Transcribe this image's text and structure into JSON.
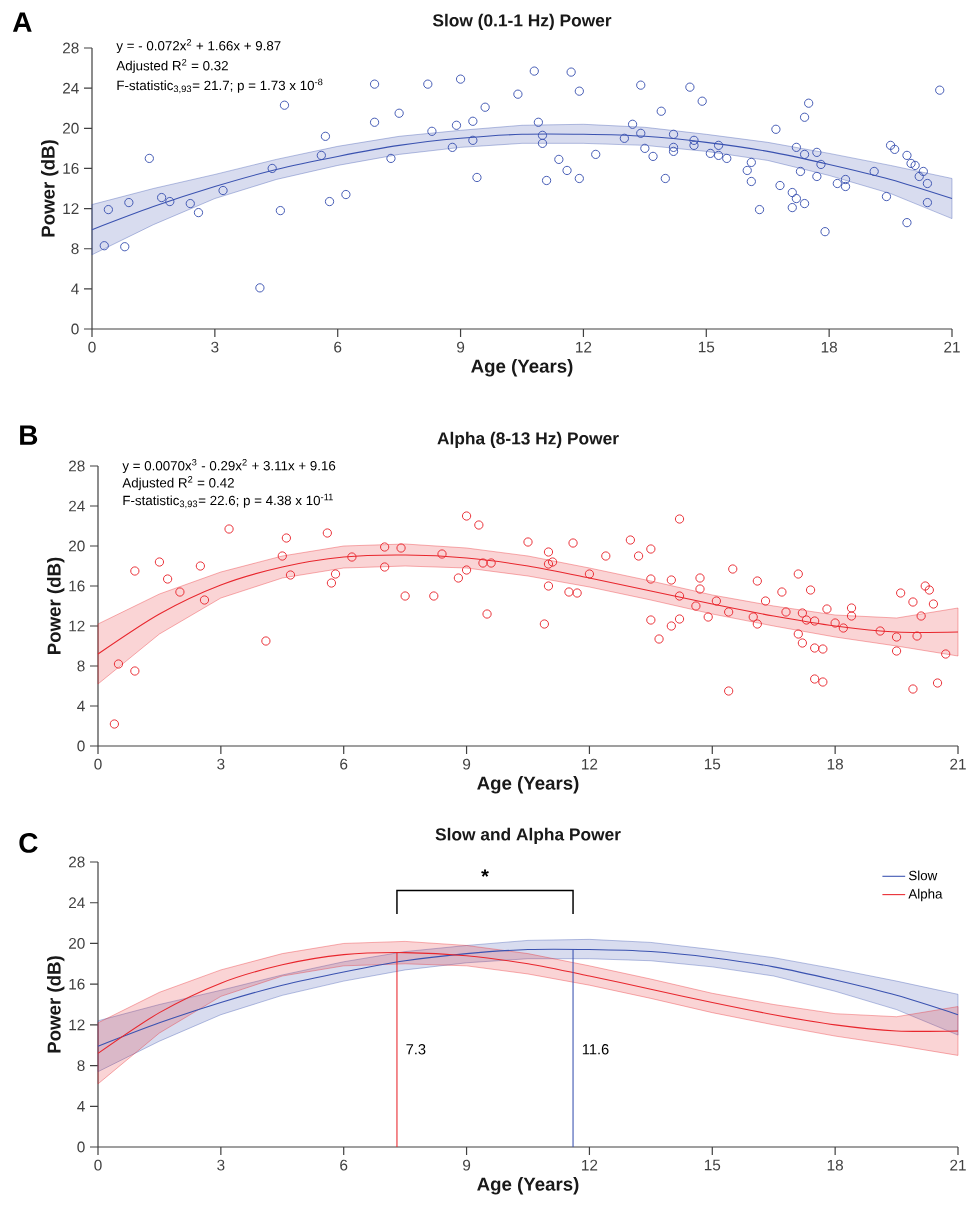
{
  "chart_data": [
    {
      "type": "scatter",
      "title": "Slow (0.1-1 Hz) Power",
      "xlabel": "Age (Years)",
      "ylabel": "Power (dB)",
      "xlim": [
        0,
        21
      ],
      "ylim": [
        0,
        28
      ],
      "xticks": [
        0,
        3,
        6,
        9,
        12,
        15,
        18,
        21
      ],
      "yticks": [
        0,
        4,
        8,
        12,
        16,
        20,
        24,
        28
      ],
      "marker": "circle",
      "annotations": [
        "A",
        "y = - 0.072x$^{2}$ + 1.66x + 9.87",
        "Adjusted R$^{2}$ = 0.32",
        "F-statistic$_{3,93}$= 21.7; p = 1.73 x 10$^{-8}$"
      ],
      "series": [
        {
          "color": "#3a52b0",
          "x": [
            0.3,
            0.4,
            0.8,
            0.9,
            1.4,
            1.7,
            1.9,
            2.4,
            2.6,
            3.2,
            4.1,
            4.4,
            4.6,
            4.7,
            5.6,
            5.7,
            5.8,
            6.2,
            6.9,
            6.9,
            7.3,
            7.5,
            8.2,
            8.3,
            8.8,
            8.9,
            9.0,
            9.3,
            9.3,
            9.4,
            9.6,
            10.4,
            10.8,
            10.9,
            11.0,
            11.0,
            11.1,
            11.4,
            11.6,
            11.7,
            11.9,
            11.9,
            12.3,
            13.0,
            13.2,
            13.4,
            13.4,
            13.5,
            13.7,
            13.9,
            14.0,
            14.2,
            14.2,
            14.2,
            14.6,
            14.7,
            14.7,
            14.9,
            15.1,
            15.3,
            15.3,
            15.5,
            16.0,
            16.1,
            16.1,
            16.3,
            16.7,
            16.8,
            17.1,
            17.1,
            17.2,
            17.2,
            17.3,
            17.4,
            17.4,
            17.4,
            17.5,
            17.7,
            17.7,
            17.8,
            17.9,
            18.2,
            18.4,
            18.4,
            19.1,
            19.4,
            19.5,
            19.6,
            19.9,
            19.9,
            20.0,
            20.1,
            20.2,
            20.3,
            20.4,
            20.4,
            20.7
          ],
          "values": [
            8.3,
            11.9,
            8.2,
            12.6,
            17.0,
            13.1,
            12.7,
            12.5,
            11.6,
            13.8,
            4.1,
            16.0,
            11.8,
            22.3,
            17.3,
            19.2,
            12.7,
            13.4,
            24.4,
            20.6,
            17.0,
            21.5,
            24.4,
            19.7,
            18.1,
            20.3,
            24.9,
            20.7,
            18.8,
            15.1,
            22.1,
            23.4,
            25.7,
            20.6,
            19.3,
            18.5,
            14.8,
            16.9,
            15.8,
            25.6,
            23.7,
            15.0,
            17.4,
            19.0,
            20.4,
            24.3,
            19.5,
            18.0,
            17.2,
            21.7,
            15.0,
            19.4,
            18.1,
            17.7,
            24.1,
            18.8,
            18.3,
            22.7,
            17.5,
            18.3,
            17.3,
            17.0,
            15.8,
            16.6,
            14.7,
            11.9,
            19.9,
            14.3,
            13.6,
            12.1,
            13.0,
            18.1,
            15.7,
            17.4,
            21.1,
            12.5,
            22.5,
            17.6,
            15.2,
            16.4,
            9.7,
            14.5,
            14.9,
            14.2,
            15.7,
            13.2,
            18.3,
            17.9,
            17.3,
            10.6,
            16.5,
            16.3,
            15.2,
            15.7,
            12.6,
            14.5,
            23.8
          ]
        },
        {
          "type": "line",
          "marker": "none",
          "color": "#3a52b0",
          "x": [
            0,
            1.5,
            3,
            4.5,
            6,
            7.5,
            9,
            10.5,
            12,
            13.5,
            15,
            16.5,
            18,
            19.5,
            21
          ],
          "values": [
            9.9,
            12.2,
            14.2,
            15.9,
            17.2,
            18.3,
            19.0,
            19.4,
            19.4,
            19.2,
            18.6,
            17.7,
            16.4,
            14.9,
            13.0
          ],
          "lower": [
            7.4,
            10.4,
            13.0,
            14.9,
            16.3,
            17.4,
            18.1,
            18.5,
            18.5,
            18.3,
            17.7,
            16.8,
            15.3,
            13.5,
            11.0
          ],
          "upper": [
            12.4,
            14.0,
            15.4,
            16.9,
            18.2,
            19.2,
            19.8,
            20.3,
            20.4,
            20.1,
            19.4,
            18.6,
            17.5,
            16.3,
            15.0
          ]
        }
      ]
    },
    {
      "type": "scatter",
      "title": "Alpha (8-13 Hz) Power",
      "xlabel": "Age (Years)",
      "ylabel": "Power (dB)",
      "xlim": [
        0,
        21
      ],
      "ylim": [
        0,
        28
      ],
      "xticks": [
        0,
        3,
        6,
        9,
        12,
        15,
        18,
        21
      ],
      "yticks": [
        0,
        4,
        8,
        12,
        16,
        20,
        24,
        28
      ],
      "marker": "circle",
      "annotations": [
        "B",
        "y = 0.0070x$^{3}$ - 0.29x$^{2}$ + 3.11x + 9.16",
        "Adjusted R$^{2}$ = 0.42",
        "F-statistic$_{3,93}$= 22.6; p = 4.38 x 10$^{-11}$"
      ],
      "series": [
        {
          "color": "#e8262d",
          "x": [
            0.4,
            0.5,
            0.9,
            0.9,
            1.5,
            1.7,
            2.0,
            2.5,
            2.6,
            3.2,
            4.1,
            4.5,
            4.6,
            4.7,
            5.6,
            5.7,
            5.8,
            6.2,
            7.0,
            7.0,
            7.4,
            7.5,
            8.2,
            8.4,
            8.8,
            9.0,
            9.0,
            9.3,
            9.4,
            9.5,
            9.6,
            10.5,
            10.9,
            11.0,
            11.0,
            11.1,
            11.0,
            11.5,
            11.6,
            11.7,
            12.0,
            12.4,
            13.0,
            13.2,
            13.5,
            13.5,
            13.5,
            13.7,
            14.0,
            14.0,
            14.2,
            14.2,
            14.2,
            14.6,
            14.7,
            14.7,
            14.9,
            15.1,
            15.4,
            15.4,
            15.5,
            16.0,
            16.1,
            16.1,
            16.3,
            16.7,
            16.8,
            17.1,
            17.1,
            17.2,
            17.2,
            17.3,
            17.4,
            17.5,
            17.5,
            17.5,
            17.7,
            17.7,
            17.8,
            18.0,
            18.2,
            18.4,
            18.4,
            19.1,
            19.5,
            19.5,
            19.6,
            19.9,
            19.9,
            20.0,
            20.1,
            20.2,
            20.3,
            20.4,
            20.5,
            20.7
          ],
          "values": [
            2.2,
            8.2,
            7.5,
            17.5,
            18.4,
            16.7,
            15.4,
            18.0,
            14.6,
            21.7,
            10.5,
            19.0,
            20.8,
            17.1,
            21.3,
            16.3,
            17.2,
            18.9,
            19.9,
            17.9,
            19.8,
            15.0,
            15.0,
            19.2,
            16.8,
            17.6,
            23.0,
            22.1,
            18.3,
            13.2,
            18.3,
            20.4,
            12.2,
            19.4,
            18.2,
            18.4,
            16.0,
            15.4,
            20.3,
            15.3,
            17.2,
            19.0,
            20.6,
            19.0,
            19.7,
            12.6,
            16.7,
            10.7,
            12.0,
            16.6,
            22.7,
            15.0,
            12.7,
            14.0,
            16.8,
            15.7,
            12.9,
            14.5,
            13.4,
            5.5,
            17.7,
            12.9,
            16.5,
            12.2,
            14.5,
            15.4,
            13.4,
            17.2,
            11.2,
            13.3,
            10.3,
            12.6,
            15.6,
            12.5,
            6.7,
            9.8,
            9.7,
            6.4,
            13.7,
            12.3,
            11.8,
            13.8,
            13.0,
            11.5,
            10.9,
            9.5,
            15.3,
            14.4,
            5.7,
            11.0,
            13.0,
            16.0,
            15.6,
            14.2,
            6.3,
            9.2
          ]
        },
        {
          "type": "line",
          "marker": "none",
          "color": "#e8262d",
          "x": [
            0,
            1.5,
            3,
            4.5,
            6,
            7.5,
            9,
            10.5,
            12,
            13.5,
            15,
            16.5,
            18,
            19.5,
            21
          ],
          "values": [
            9.2,
            13.2,
            16.1,
            17.9,
            18.9,
            19.1,
            18.8,
            18.0,
            16.8,
            15.5,
            14.2,
            13.0,
            12.0,
            11.4,
            11.4
          ],
          "lower": [
            6.2,
            11.2,
            14.8,
            16.8,
            17.8,
            18.0,
            17.8,
            17.0,
            15.9,
            14.6,
            13.2,
            12.0,
            10.9,
            10.0,
            9.0
          ],
          "upper": [
            12.2,
            15.2,
            17.4,
            19.0,
            20.0,
            20.2,
            19.8,
            19.0,
            17.8,
            16.5,
            15.1,
            14.0,
            13.1,
            12.8,
            13.8
          ]
        }
      ]
    },
    {
      "type": "line",
      "title": "Slow and Alpha Power",
      "xlabel": "Age (Years)",
      "ylabel": "Power (dB)",
      "xlim": [
        0,
        21
      ],
      "ylim": [
        0,
        28
      ],
      "xticks": [
        0,
        3,
        6,
        9,
        12,
        15,
        18,
        21
      ],
      "yticks": [
        0,
        4,
        8,
        12,
        16,
        20,
        24,
        28
      ],
      "legend": "top right",
      "annotations": [
        "C",
        "*"
      ],
      "ref_lines": [
        {
          "axis": "x",
          "value": 7.3,
          "label": "7.3",
          "color": "#e8262d"
        },
        {
          "axis": "x",
          "value": 11.6,
          "label": "11.6",
          "color": "#3a52b0"
        }
      ],
      "series": [
        {
          "name": "Slow",
          "color": "#3a52b0",
          "x": [
            0,
            1.5,
            3,
            4.5,
            6,
            7.5,
            9,
            10.5,
            12,
            13.5,
            15,
            16.5,
            18,
            19.5,
            21
          ],
          "values": [
            9.9,
            12.2,
            14.2,
            15.9,
            17.2,
            18.3,
            19.0,
            19.4,
            19.4,
            19.2,
            18.6,
            17.7,
            16.4,
            14.9,
            13.0
          ],
          "lower": [
            7.4,
            10.4,
            13.0,
            14.9,
            16.3,
            17.4,
            18.1,
            18.5,
            18.5,
            18.3,
            17.7,
            16.8,
            15.3,
            13.5,
            11.0
          ],
          "upper": [
            12.4,
            14.0,
            15.4,
            16.9,
            18.2,
            19.2,
            19.8,
            20.3,
            20.4,
            20.1,
            19.4,
            18.6,
            17.5,
            16.3,
            15.0
          ]
        },
        {
          "name": "Alpha",
          "color": "#e8262d",
          "x": [
            0,
            1.5,
            3,
            4.5,
            6,
            7.5,
            9,
            10.5,
            12,
            13.5,
            15,
            16.5,
            18,
            19.5,
            21
          ],
          "values": [
            9.2,
            13.2,
            16.1,
            17.9,
            18.9,
            19.1,
            18.8,
            18.0,
            16.8,
            15.5,
            14.2,
            13.0,
            12.0,
            11.4,
            11.4
          ],
          "lower": [
            6.2,
            11.2,
            14.8,
            16.8,
            17.8,
            18.0,
            17.8,
            17.0,
            15.9,
            14.6,
            13.2,
            12.0,
            10.9,
            10.0,
            9.0
          ],
          "upper": [
            12.2,
            15.2,
            17.4,
            19.0,
            20.0,
            20.2,
            19.8,
            19.0,
            17.8,
            16.5,
            15.1,
            14.0,
            13.1,
            12.8,
            13.8
          ]
        }
      ]
    }
  ]
}
